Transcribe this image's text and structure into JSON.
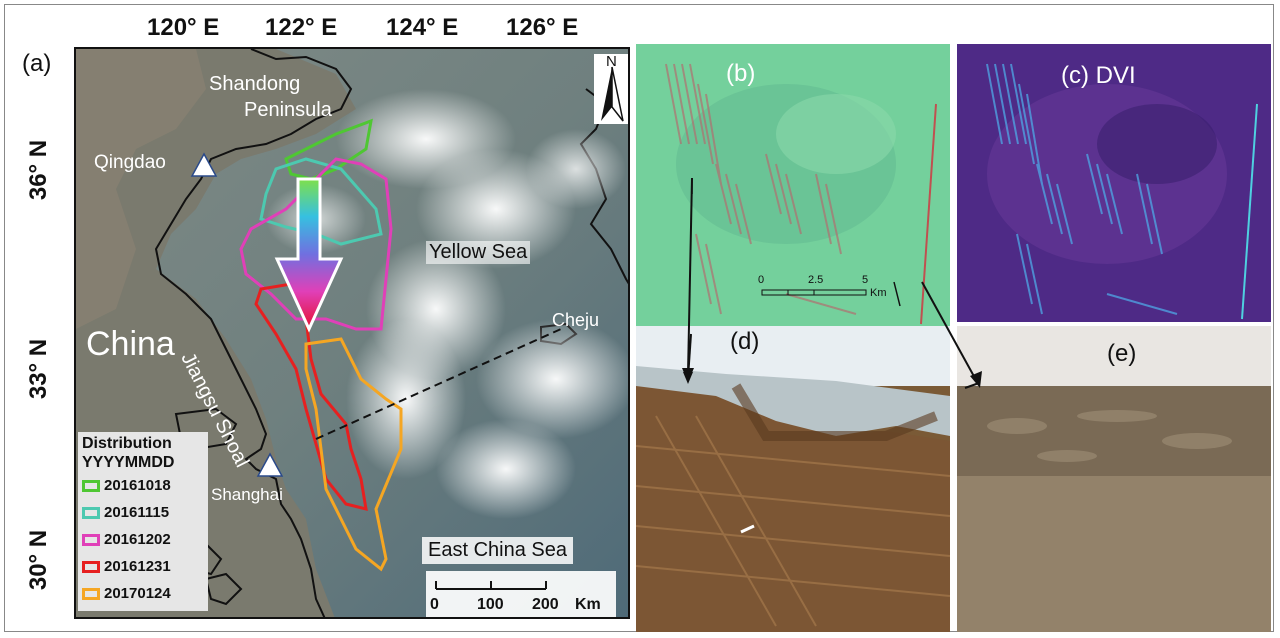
{
  "panel_labels": {
    "a": "(a)",
    "b": "(b)",
    "c": "(c) DVI",
    "d": "(d)",
    "e": "(e)"
  },
  "lon_ticks": [
    "120° E",
    "122° E",
    "124° E",
    "126° E"
  ],
  "lat_ticks": [
    "36° N",
    "33° N",
    "30° N"
  ],
  "places": {
    "shandong": "Shandong",
    "peninsula": "Peninsula",
    "qingdao": "Qingdao",
    "china": "China",
    "yellow_sea": "Yellow Sea",
    "jiangsu_shoal": "Jiangsu Shoal",
    "cheju": "Cheju",
    "shanghai": "Shanghai",
    "east_china_sea": "East China Sea"
  },
  "north_arrow": "N",
  "legend": {
    "title1": "Distribution",
    "title2": "YYYYMMDD",
    "items": [
      {
        "label": "20161018",
        "color": "#4fc733"
      },
      {
        "label": "20161115",
        "color": "#4dc9b0"
      },
      {
        "label": "20161202",
        "color": "#e040b8"
      },
      {
        "label": "20161231",
        "color": "#e62020"
      },
      {
        "label": "20170124",
        "color": "#f5a623"
      }
    ]
  },
  "scale_bar": {
    "ticks": [
      "0",
      "100",
      "200"
    ],
    "unit": "Km"
  },
  "panel_b_scale": {
    "ticks": [
      "0",
      "2.5",
      "5"
    ],
    "unit": "Km"
  }
}
